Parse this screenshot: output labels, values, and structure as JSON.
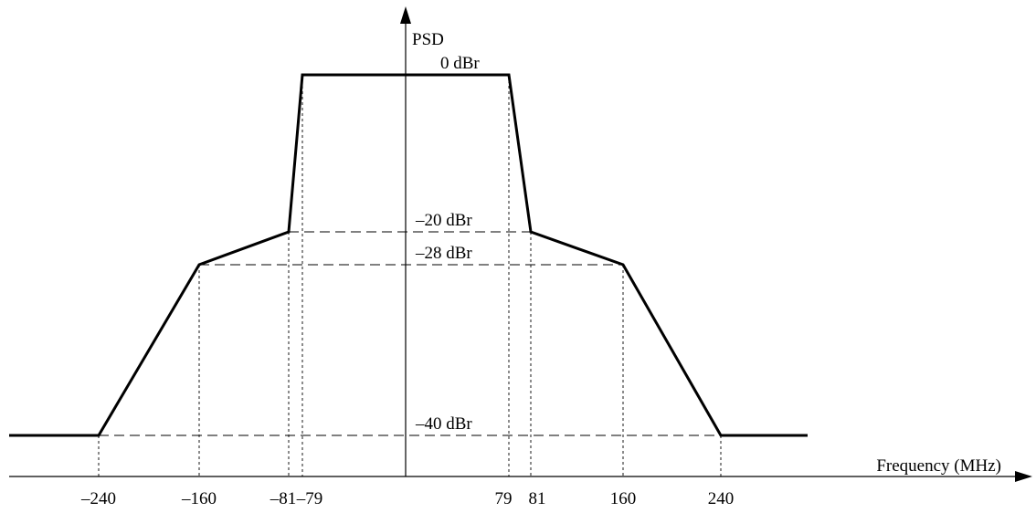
{
  "diagram": {
    "y_axis_label": "PSD",
    "x_axis_label": "Frequency (MHz)",
    "mask_points": [
      {
        "f": -240,
        "dbr": -40
      },
      {
        "f": -160,
        "dbr": -28
      },
      {
        "f": -81,
        "dbr": -20
      },
      {
        "f": -79,
        "dbr": 0
      },
      {
        "f": 79,
        "dbr": 0
      },
      {
        "f": 81,
        "dbr": -20
      },
      {
        "f": 160,
        "dbr": -28
      },
      {
        "f": 240,
        "dbr": -40
      }
    ],
    "level_labels": [
      {
        "dbr": 0,
        "text": "0 dBr"
      },
      {
        "dbr": -20,
        "text": "–20 dBr"
      },
      {
        "dbr": -28,
        "text": "–28 dBr"
      },
      {
        "dbr": -40,
        "text": "–40 dBr"
      }
    ],
    "tick_labels": [
      {
        "f": -240,
        "text": "–240"
      },
      {
        "f": -160,
        "text": "–160"
      },
      {
        "f": -81,
        "text": "–81"
      },
      {
        "f": -79,
        "text": "–79"
      },
      {
        "f": 79,
        "text": "79"
      },
      {
        "f": 81,
        "text": "81"
      },
      {
        "f": 160,
        "text": "160"
      },
      {
        "f": 240,
        "text": "240"
      }
    ]
  }
}
